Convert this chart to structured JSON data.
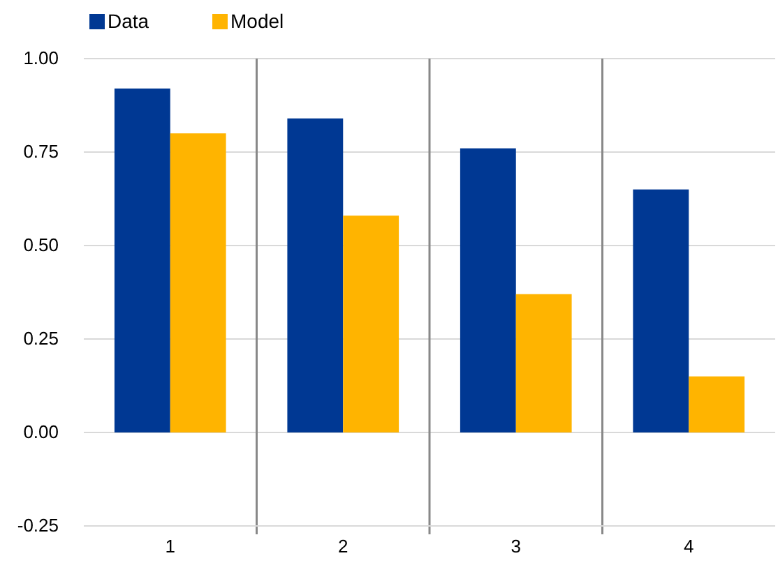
{
  "chart_data": {
    "type": "bar",
    "categories": [
      "1",
      "2",
      "3",
      "4"
    ],
    "series": [
      {
        "name": "Data",
        "color": "#003893",
        "values": [
          0.92,
          0.84,
          0.76,
          0.65
        ]
      },
      {
        "name": "Model",
        "color": "#ffb400",
        "values": [
          0.8,
          0.58,
          0.37,
          0.15
        ]
      }
    ],
    "ylim": [
      -0.25,
      1
    ],
    "yticks": [
      {
        "value": -0.25,
        "label": "-0.25"
      },
      {
        "value": 0,
        "label": "0.00"
      },
      {
        "value": 0.25,
        "label": "0.25"
      },
      {
        "value": 0.5,
        "label": "0.50"
      },
      {
        "value": 0.75,
        "label": "0.75"
      },
      {
        "value": 1,
        "label": "1.00"
      }
    ],
    "grid": "y",
    "legend": "top left"
  }
}
